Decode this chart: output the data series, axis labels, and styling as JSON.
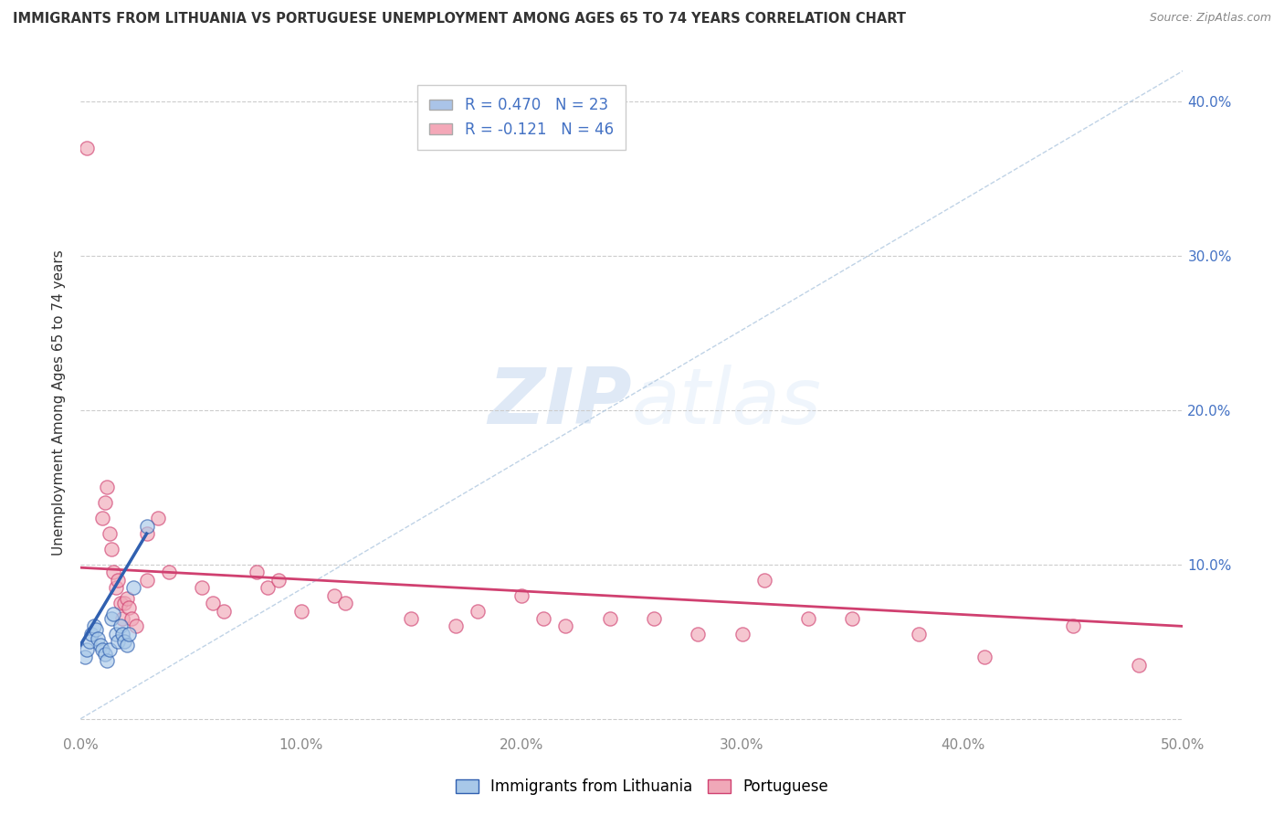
{
  "title": "IMMIGRANTS FROM LITHUANIA VS PORTUGUESE UNEMPLOYMENT AMONG AGES 65 TO 74 YEARS CORRELATION CHART",
  "source": "Source: ZipAtlas.com",
  "ylabel": "Unemployment Among Ages 65 to 74 years",
  "xlim": [
    0.0,
    0.5
  ],
  "ylim": [
    -0.01,
    0.42
  ],
  "x_ticks": [
    0.0,
    0.1,
    0.2,
    0.3,
    0.4,
    0.5
  ],
  "x_tick_labels": [
    "0.0%",
    "10.0%",
    "20.0%",
    "30.0%",
    "40.0%",
    "50.0%"
  ],
  "y_ticks": [
    0.0,
    0.1,
    0.2,
    0.3,
    0.4
  ],
  "right_tick_labels": [
    "",
    "10.0%",
    "20.0%",
    "30.0%",
    "40.0%"
  ],
  "legend_entries": [
    {
      "label": "R = 0.470   N = 23",
      "color": "#aac4e8"
    },
    {
      "label": "R = -0.121   N = 46",
      "color": "#f4a8b8"
    }
  ],
  "watermark_zip": "ZIP",
  "watermark_atlas": "atlas",
  "blue_scatter_x": [
    0.002,
    0.003,
    0.004,
    0.005,
    0.006,
    0.007,
    0.008,
    0.009,
    0.01,
    0.011,
    0.012,
    0.013,
    0.014,
    0.015,
    0.016,
    0.017,
    0.018,
    0.019,
    0.02,
    0.021,
    0.022,
    0.024,
    0.03
  ],
  "blue_scatter_y": [
    0.04,
    0.045,
    0.05,
    0.055,
    0.06,
    0.058,
    0.052,
    0.048,
    0.045,
    0.042,
    0.038,
    0.045,
    0.065,
    0.068,
    0.055,
    0.05,
    0.06,
    0.055,
    0.05,
    0.048,
    0.055,
    0.085,
    0.125
  ],
  "pink_scatter_x": [
    0.003,
    0.01,
    0.011,
    0.012,
    0.013,
    0.014,
    0.015,
    0.016,
    0.017,
    0.018,
    0.019,
    0.02,
    0.021,
    0.022,
    0.023,
    0.025,
    0.03,
    0.03,
    0.035,
    0.04,
    0.055,
    0.06,
    0.065,
    0.08,
    0.085,
    0.09,
    0.1,
    0.115,
    0.12,
    0.15,
    0.17,
    0.18,
    0.2,
    0.21,
    0.22,
    0.24,
    0.26,
    0.28,
    0.3,
    0.31,
    0.33,
    0.35,
    0.38,
    0.41,
    0.45,
    0.48
  ],
  "pink_scatter_y": [
    0.37,
    0.13,
    0.14,
    0.15,
    0.12,
    0.11,
    0.095,
    0.085,
    0.09,
    0.075,
    0.065,
    0.075,
    0.078,
    0.072,
    0.065,
    0.06,
    0.12,
    0.09,
    0.13,
    0.095,
    0.085,
    0.075,
    0.07,
    0.095,
    0.085,
    0.09,
    0.07,
    0.08,
    0.075,
    0.065,
    0.06,
    0.07,
    0.08,
    0.065,
    0.06,
    0.065,
    0.065,
    0.055,
    0.055,
    0.09,
    0.065,
    0.065,
    0.055,
    0.04,
    0.06,
    0.035
  ],
  "blue_line_x": [
    0.0,
    0.03
  ],
  "blue_line_y": [
    0.048,
    0.12
  ],
  "trendline_x": [
    0.0,
    0.5
  ],
  "trendline_y": [
    0.0,
    0.42
  ],
  "pink_line_x": [
    0.0,
    0.5
  ],
  "pink_line_y": [
    0.098,
    0.06
  ],
  "scatter_size": 120,
  "blue_color": "#a8c8e8",
  "pink_color": "#f0a8b8",
  "blue_line_color": "#3060b0",
  "pink_line_color": "#d04070",
  "trendline_color": "#b0c8e0",
  "grid_color": "#cccccc",
  "background_color": "#ffffff",
  "title_color": "#333333",
  "axis_color": "#888888",
  "right_tick_color": "#4472C4",
  "legend_text_color": "#4472C4"
}
